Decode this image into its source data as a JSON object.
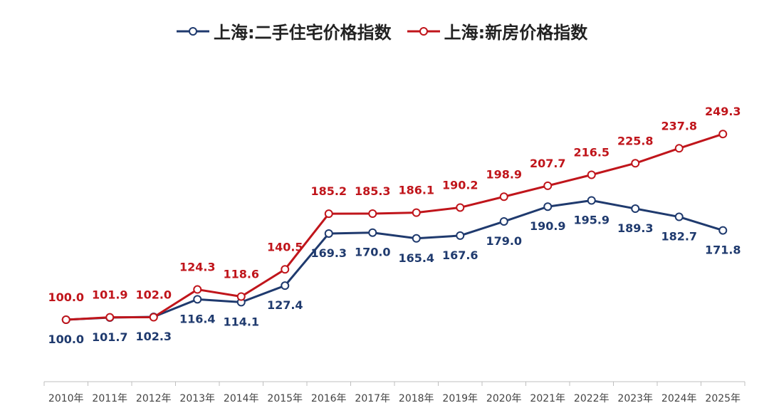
{
  "chart_data": {
    "type": "line",
    "title": "",
    "xlabel": "",
    "ylabel": "",
    "categories": [
      "2010年",
      "2011年",
      "2012年",
      "2013年",
      "2014年",
      "2015年",
      "2016年",
      "2017年",
      "2018年",
      "2019年",
      "2020年",
      "2021年",
      "2022年",
      "2023年",
      "2024年",
      "2025年"
    ],
    "series": [
      {
        "name": "上海:二手住宅价格指数",
        "color": "#1f3a6e",
        "values": [
          100.0,
          101.7,
          102.3,
          116.4,
          114.1,
          127.4,
          169.3,
          170.0,
          165.4,
          167.6,
          179.0,
          190.9,
          195.9,
          189.3,
          182.7,
          171.8
        ],
        "labels": [
          "100.0",
          "101.7",
          "102.3",
          "116.4",
          "114.1",
          "127.4",
          "169.3",
          "170.0",
          "165.4",
          "167.6",
          "179.0",
          "190.9",
          "195.9",
          "189.3",
          "182.7",
          "171.8"
        ]
      },
      {
        "name": "上海:新房价格指数",
        "color": "#c0151b",
        "values": [
          100.0,
          101.9,
          102.0,
          124.3,
          118.6,
          140.5,
          185.2,
          185.3,
          186.1,
          190.2,
          198.9,
          207.7,
          216.5,
          225.8,
          237.8,
          249.3
        ],
        "labels": [
          "100.0",
          "101.9",
          "102.0",
          "124.3",
          "118.6",
          "140.5",
          "185.2",
          "185.3",
          "186.1",
          "190.2",
          "198.9",
          "207.7",
          "216.5",
          "225.8",
          "237.8",
          "249.3"
        ]
      }
    ],
    "ylim": [
      0,
      265
    ],
    "grid": false,
    "legend_position": "top-center"
  }
}
